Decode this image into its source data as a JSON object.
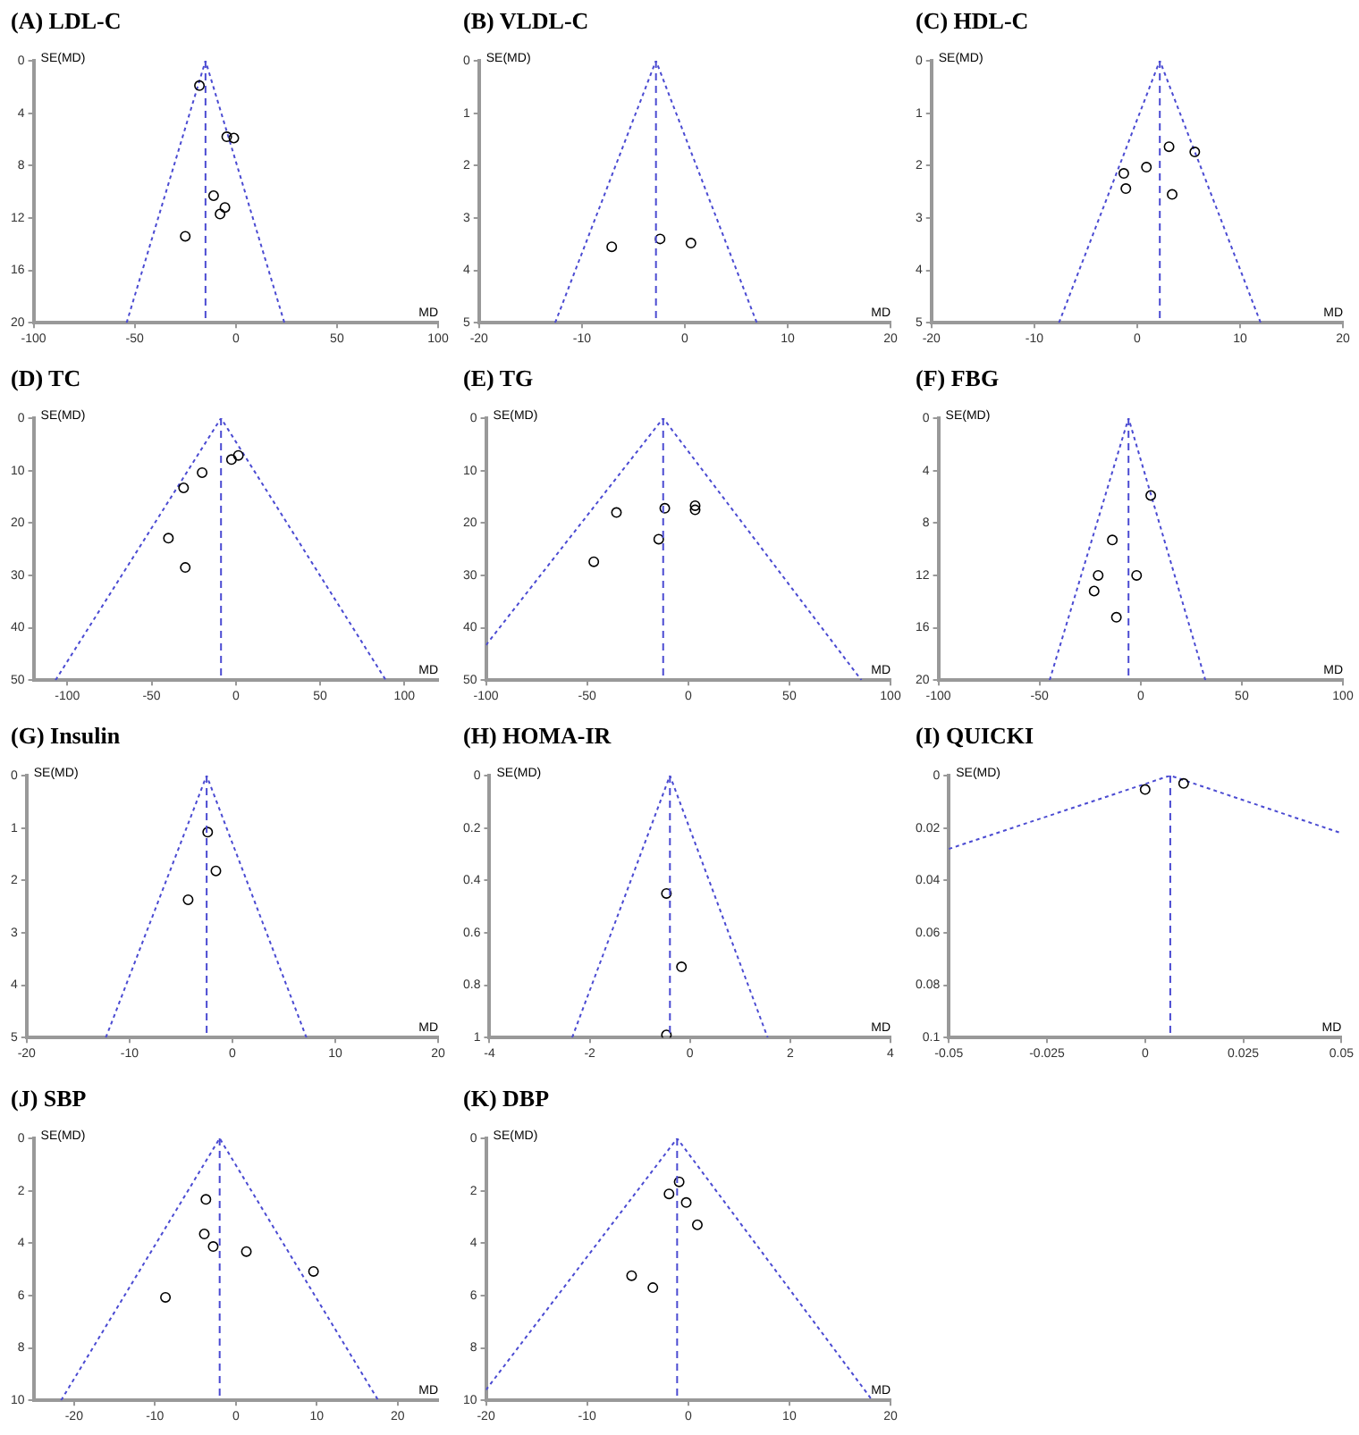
{
  "chart_data": [
    {
      "type": "scatter",
      "title": "(A) LDL-C",
      "xlabel": "MD",
      "ylabel": "SE(MD)",
      "xlim": [
        -100,
        100
      ],
      "xticks": [
        -100,
        -50,
        0,
        50,
        100
      ],
      "ylim": [
        20,
        0
      ],
      "yticks": [
        0,
        4,
        8,
        12,
        16,
        20
      ],
      "series": [
        {
          "type": "scatter",
          "marker": "circle",
          "color": "#000000",
          "x": [
            -18,
            -4.5,
            -1,
            -11,
            -5.4,
            -7.8,
            -25
          ],
          "values": [
            1.9,
            5.8,
            5.9,
            10.3,
            11.2,
            11.7,
            13.4
          ]
        },
        {
          "type": "line",
          "marker": "none",
          "line_style": "dotted",
          "color": "#4b4bd2",
          "x": [
            -54,
            -15,
            24
          ],
          "values": [
            20,
            0,
            20
          ]
        }
      ],
      "ref_lines": [
        {
          "axis": "x",
          "value": -15,
          "color": "#4b4bd2",
          "line_style": "dashed"
        }
      ]
    },
    {
      "type": "scatter",
      "title": "(B) VLDL-C",
      "xlabel": "MD",
      "ylabel": "SE(MD)",
      "xlim": [
        -20,
        20
      ],
      "xticks": [
        -20,
        -10,
        0,
        10,
        20
      ],
      "ylim": [
        5,
        0
      ],
      "yticks": [
        0,
        1,
        2,
        3,
        4,
        5
      ],
      "series": [
        {
          "type": "scatter",
          "marker": "circle",
          "color": "#000000",
          "x": [
            -7.1,
            -2.4,
            0.6
          ],
          "values": [
            3.55,
            3.4,
            3.48
          ]
        },
        {
          "type": "line",
          "marker": "none",
          "line_style": "dotted",
          "color": "#4b4bd2",
          "x": [
            -12.6,
            -2.8,
            7
          ],
          "values": [
            5,
            0,
            5
          ]
        }
      ],
      "ref_lines": [
        {
          "axis": "x",
          "value": -2.8,
          "color": "#4b4bd2",
          "line_style": "dashed"
        }
      ]
    },
    {
      "type": "scatter",
      "title": "(C) HDL-C",
      "xlabel": "MD",
      "ylabel": "SE(MD)",
      "xlim": [
        -20,
        20
      ],
      "xticks": [
        -20,
        -10,
        0,
        10,
        20
      ],
      "ylim": [
        5,
        0
      ],
      "yticks": [
        0,
        1,
        2,
        3,
        4,
        5
      ],
      "series": [
        {
          "type": "scatter",
          "marker": "circle",
          "color": "#000000",
          "x": [
            3.1,
            5.6,
            0.9,
            -1.3,
            -1.1,
            3.4
          ],
          "values": [
            1.64,
            1.74,
            2.03,
            2.15,
            2.44,
            2.55
          ]
        },
        {
          "type": "line",
          "marker": "none",
          "line_style": "dotted",
          "color": "#4b4bd2",
          "x": [
            -7.6,
            2.2,
            12
          ],
          "values": [
            5,
            0,
            5
          ]
        }
      ],
      "ref_lines": [
        {
          "axis": "x",
          "value": 2.2,
          "color": "#4b4bd2",
          "line_style": "dashed"
        }
      ]
    },
    {
      "type": "scatter",
      "title": "(D) TC",
      "xlabel": "MD",
      "ylabel": "SE(MD)",
      "xlim": [
        -120,
        120
      ],
      "xticks": [
        -100,
        -50,
        0,
        50,
        100
      ],
      "ylim": [
        50,
        0
      ],
      "yticks": [
        0,
        10,
        20,
        30,
        40,
        50
      ],
      "series": [
        {
          "type": "scatter",
          "marker": "circle",
          "color": "#000000",
          "x": [
            1.5,
            -2.6,
            -20,
            -31,
            -40,
            -30
          ],
          "values": [
            7.1,
            7.9,
            10.4,
            13.3,
            22.9,
            28.5
          ]
        },
        {
          "type": "line",
          "marker": "none",
          "line_style": "dotted",
          "color": "#4b4bd2",
          "x": [
            -107,
            -8.8,
            89
          ],
          "values": [
            50,
            0,
            50
          ]
        }
      ],
      "ref_lines": [
        {
          "axis": "x",
          "value": -8.8,
          "color": "#4b4bd2",
          "line_style": "dashed"
        }
      ]
    },
    {
      "type": "scatter",
      "title": "(E) TG",
      "xlabel": "MD",
      "ylabel": "SE(MD)",
      "xlim": [
        -100,
        100
      ],
      "xticks": [
        -100,
        -50,
        0,
        50,
        100
      ],
      "ylim": [
        50,
        0
      ],
      "yticks": [
        0,
        10,
        20,
        30,
        40,
        50
      ],
      "series": [
        {
          "type": "scatter",
          "marker": "circle",
          "color": "#000000",
          "x": [
            -35.5,
            -46.7,
            -11.6,
            -14.6,
            3.4,
            3.4
          ],
          "values": [
            18,
            27.4,
            17.2,
            23.1,
            16.7,
            17.5
          ]
        },
        {
          "type": "line",
          "marker": "none",
          "line_style": "dotted",
          "color": "#4b4bd2",
          "x": [
            -100,
            -12.4,
            85.6
          ],
          "values": [
            43.3,
            0,
            50
          ]
        }
      ],
      "ref_lines": [
        {
          "axis": "x",
          "value": -12.4,
          "color": "#4b4bd2",
          "line_style": "dashed"
        }
      ]
    },
    {
      "type": "scatter",
      "title": "(F) FBG",
      "xlabel": "MD",
      "ylabel": "SE(MD)",
      "xlim": [
        -100,
        100
      ],
      "xticks": [
        -100,
        -50,
        0,
        50,
        100
      ],
      "ylim": [
        20,
        0
      ],
      "yticks": [
        0,
        4,
        8,
        12,
        16,
        20
      ],
      "series": [
        {
          "type": "scatter",
          "marker": "circle",
          "color": "#000000",
          "x": [
            5,
            -14,
            -21,
            -23,
            -2,
            -12
          ],
          "values": [
            5.9,
            9.3,
            12,
            13.2,
            12,
            15.2
          ]
        },
        {
          "type": "line",
          "marker": "none",
          "line_style": "dotted",
          "color": "#4b4bd2",
          "x": [
            -45,
            -6,
            32
          ],
          "values": [
            20,
            0,
            20
          ]
        }
      ],
      "ref_lines": [
        {
          "axis": "x",
          "value": -6,
          "color": "#4b4bd2",
          "line_style": "dashed"
        }
      ]
    },
    {
      "type": "scatter",
      "title": "(G) Insulin",
      "xlabel": "MD",
      "ylabel": "SE(MD)",
      "xlim": [
        -20,
        20
      ],
      "xticks": [
        -20,
        -10,
        0,
        10,
        20
      ],
      "ylim": [
        5,
        0
      ],
      "yticks": [
        0,
        1,
        2,
        3,
        4,
        5
      ],
      "series": [
        {
          "type": "scatter",
          "marker": "circle",
          "color": "#000000",
          "x": [
            -2.4,
            -1.6,
            -4.3
          ],
          "values": [
            1.08,
            1.82,
            2.37
          ]
        },
        {
          "type": "line",
          "marker": "none",
          "line_style": "dotted",
          "color": "#4b4bd2",
          "x": [
            -12.3,
            -2.5,
            7.2
          ],
          "values": [
            5,
            0,
            5
          ]
        }
      ],
      "ref_lines": [
        {
          "axis": "x",
          "value": -2.5,
          "color": "#4b4bd2",
          "line_style": "dashed"
        }
      ]
    },
    {
      "type": "scatter",
      "title": "(H) HOMA-IR",
      "xlabel": "MD",
      "ylabel": "SE(MD)",
      "xlim": [
        -4,
        4
      ],
      "xticks": [
        -4,
        -2,
        0,
        2,
        4
      ],
      "ylim": [
        1,
        0
      ],
      "yticks": [
        0,
        0.2,
        0.4,
        0.6,
        0.8,
        1
      ],
      "series": [
        {
          "type": "scatter",
          "marker": "circle",
          "color": "#000000",
          "x": [
            -0.47,
            -0.17,
            -0.47
          ],
          "values": [
            0.45,
            0.73,
            0.99
          ]
        },
        {
          "type": "line",
          "marker": "none",
          "line_style": "dotted",
          "color": "#4b4bd2",
          "x": [
            -2.35,
            -0.4,
            1.55
          ],
          "values": [
            1,
            0,
            1
          ]
        }
      ],
      "ref_lines": [
        {
          "axis": "x",
          "value": -0.4,
          "color": "#4b4bd2",
          "line_style": "dashed"
        }
      ]
    },
    {
      "type": "scatter",
      "title": "(I) QUICKI",
      "xlabel": "MD",
      "ylabel": "SE(MD)",
      "xlim": [
        -0.05,
        0.05
      ],
      "xticks": [
        -0.05,
        -0.025,
        0,
        0.025,
        0.05
      ],
      "ylim": [
        0.1,
        0
      ],
      "yticks": [
        0,
        0.02,
        0.04,
        0.06,
        0.08,
        0.1
      ],
      "series": [
        {
          "type": "scatter",
          "marker": "circle",
          "color": "#000000",
          "x": [
            0,
            0.0098
          ],
          "values": [
            0.0053,
            0.003
          ]
        },
        {
          "type": "line",
          "marker": "none",
          "line_style": "dotted",
          "color": "#4b4bd2",
          "x": [
            -0.05,
            0.0064,
            0.05
          ],
          "values": [
            0.028,
            0,
            0.022
          ]
        }
      ],
      "ref_lines": [
        {
          "axis": "x",
          "value": 0.0064,
          "color": "#4b4bd2",
          "line_style": "dashed"
        }
      ]
    },
    {
      "type": "scatter",
      "title": "(J) SBP",
      "xlabel": "MD",
      "ylabel": "SE(MD)",
      "xlim": [
        -25,
        25
      ],
      "xticks": [
        -20,
        -10,
        0,
        10,
        20
      ],
      "ylim": [
        10,
        0
      ],
      "yticks": [
        0,
        2,
        4,
        6,
        8,
        10
      ],
      "series": [
        {
          "type": "scatter",
          "marker": "circle",
          "color": "#000000",
          "x": [
            -3.7,
            -3.9,
            -2.8,
            1.3,
            9.6,
            -8.7
          ],
          "values": [
            2.33,
            3.65,
            4.13,
            4.32,
            5.08,
            6.07
          ]
        },
        {
          "type": "line",
          "marker": "none",
          "line_style": "dotted",
          "color": "#4b4bd2",
          "x": [
            -21.6,
            -2,
            17.6
          ],
          "values": [
            10,
            0,
            10
          ]
        }
      ],
      "ref_lines": [
        {
          "axis": "x",
          "value": -2,
          "color": "#4b4bd2",
          "line_style": "dashed"
        }
      ]
    },
    {
      "type": "scatter",
      "title": "(K) DBP",
      "xlabel": "MD",
      "ylabel": "SE(MD)",
      "xlim": [
        -20,
        20
      ],
      "xticks": [
        -20,
        -10,
        0,
        10,
        20
      ],
      "ylim": [
        10,
        0
      ],
      "yticks": [
        0,
        2,
        4,
        6,
        8,
        10
      ],
      "series": [
        {
          "type": "scatter",
          "marker": "circle",
          "color": "#000000",
          "x": [
            -0.9,
            -1.9,
            -0.2,
            0.9,
            -5.6,
            -3.5
          ],
          "values": [
            1.66,
            2.12,
            2.45,
            3.3,
            5.24,
            5.7
          ]
        },
        {
          "type": "line",
          "marker": "none",
          "line_style": "dotted",
          "color": "#4b4bd2",
          "x": [
            -20,
            -1.1,
            18.2
          ],
          "values": [
            9.6,
            0,
            10
          ]
        }
      ],
      "ref_lines": [
        {
          "axis": "x",
          "value": -1.1,
          "color": "#4b4bd2",
          "line_style": "dashed"
        }
      ]
    }
  ]
}
